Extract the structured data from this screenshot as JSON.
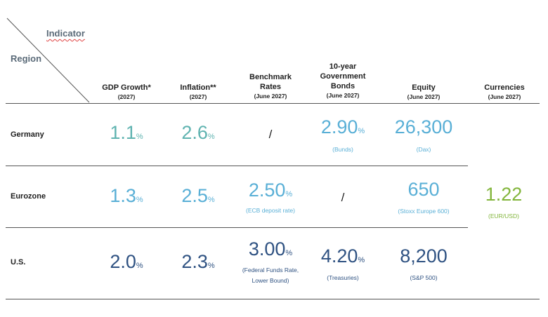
{
  "header": {
    "indicator": "Indicator",
    "region": "Region",
    "columns": [
      {
        "title": "GDP Growth*",
        "sub": "(2027)"
      },
      {
        "title": "Inflation**",
        "sub": "(2027)"
      },
      {
        "title": "Benchmark Rates",
        "sub": "(June 2027)"
      },
      {
        "title": "10-year Government Bonds",
        "sub": "(June 2027)"
      },
      {
        "title": "Equity",
        "sub": "(June 2027)"
      },
      {
        "title": "Currencies",
        "sub": "(June 2027)"
      }
    ]
  },
  "rows": [
    {
      "region": "Germany",
      "gdp": "1.1",
      "inflation": "2.6",
      "benchmark": "/",
      "bonds": "2.90",
      "bonds_note": "(Bunds)",
      "equity": "26,300",
      "equity_note": "(Dax)"
    },
    {
      "region": "Eurozone",
      "gdp": "1.3",
      "inflation": "2.5",
      "benchmark": "2.50",
      "benchmark_note": "(ECB deposit rate)",
      "bonds": "/",
      "equity": "650",
      "equity_note": "(Stoxx Europe 600)"
    },
    {
      "region": "U.S.",
      "gdp": "2.0",
      "inflation": "2.3",
      "benchmark": "3.00",
      "benchmark_note_1": "(Federal Funds Rate,",
      "benchmark_note_2": "Lower Bound)",
      "bonds": "4.20",
      "bonds_note": "(Treasuries)",
      "equity": "8,200",
      "equity_note": "(S&P 500)"
    }
  ],
  "currency": {
    "value": "1.22",
    "note": "(EUR/USD)"
  },
  "pct": "%",
  "colors": {
    "teal": "#5fb3b0",
    "lightblue": "#59afd6",
    "navy": "#2f5282",
    "green": "#82b53b"
  }
}
